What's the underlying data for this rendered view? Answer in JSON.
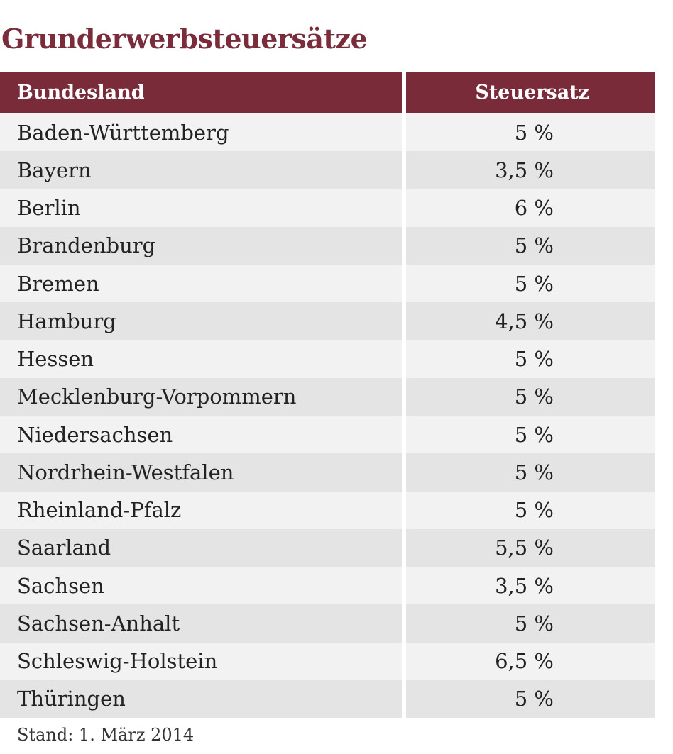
{
  "title": "Grunderwerbsteuersätze",
  "table": {
    "headers": [
      "Bundesland",
      "Steuersatz"
    ],
    "rows": [
      [
        "Baden-Württemberg",
        "5 %"
      ],
      [
        "Bayern",
        "3,5 %"
      ],
      [
        "Berlin",
        "6 %"
      ],
      [
        "Brandenburg",
        "5 %"
      ],
      [
        "Bremen",
        "5 %"
      ],
      [
        "Hamburg",
        "4,5 %"
      ],
      [
        "Hessen",
        "5 %"
      ],
      [
        "Mecklenburg-Vorpommern",
        "5 %"
      ],
      [
        "Niedersachsen",
        "5 %"
      ],
      [
        "Nordrhein-Westfalen",
        "5 %"
      ],
      [
        "Rheinland-Pfalz",
        "5 %"
      ],
      [
        "Saarland",
        "5,5 %"
      ],
      [
        "Sachsen",
        "3,5 %"
      ],
      [
        "Sachsen-Anhalt",
        "5 %"
      ],
      [
        "Schleswig-Holstein",
        "6,5 %"
      ],
      [
        "Thüringen",
        "5 %"
      ]
    ]
  },
  "footnote": "Stand: 1. März 2014",
  "colors": {
    "accent": "#7a2b3a",
    "row_light": "#f2f2f2",
    "row_dark": "#e4e4e4"
  }
}
